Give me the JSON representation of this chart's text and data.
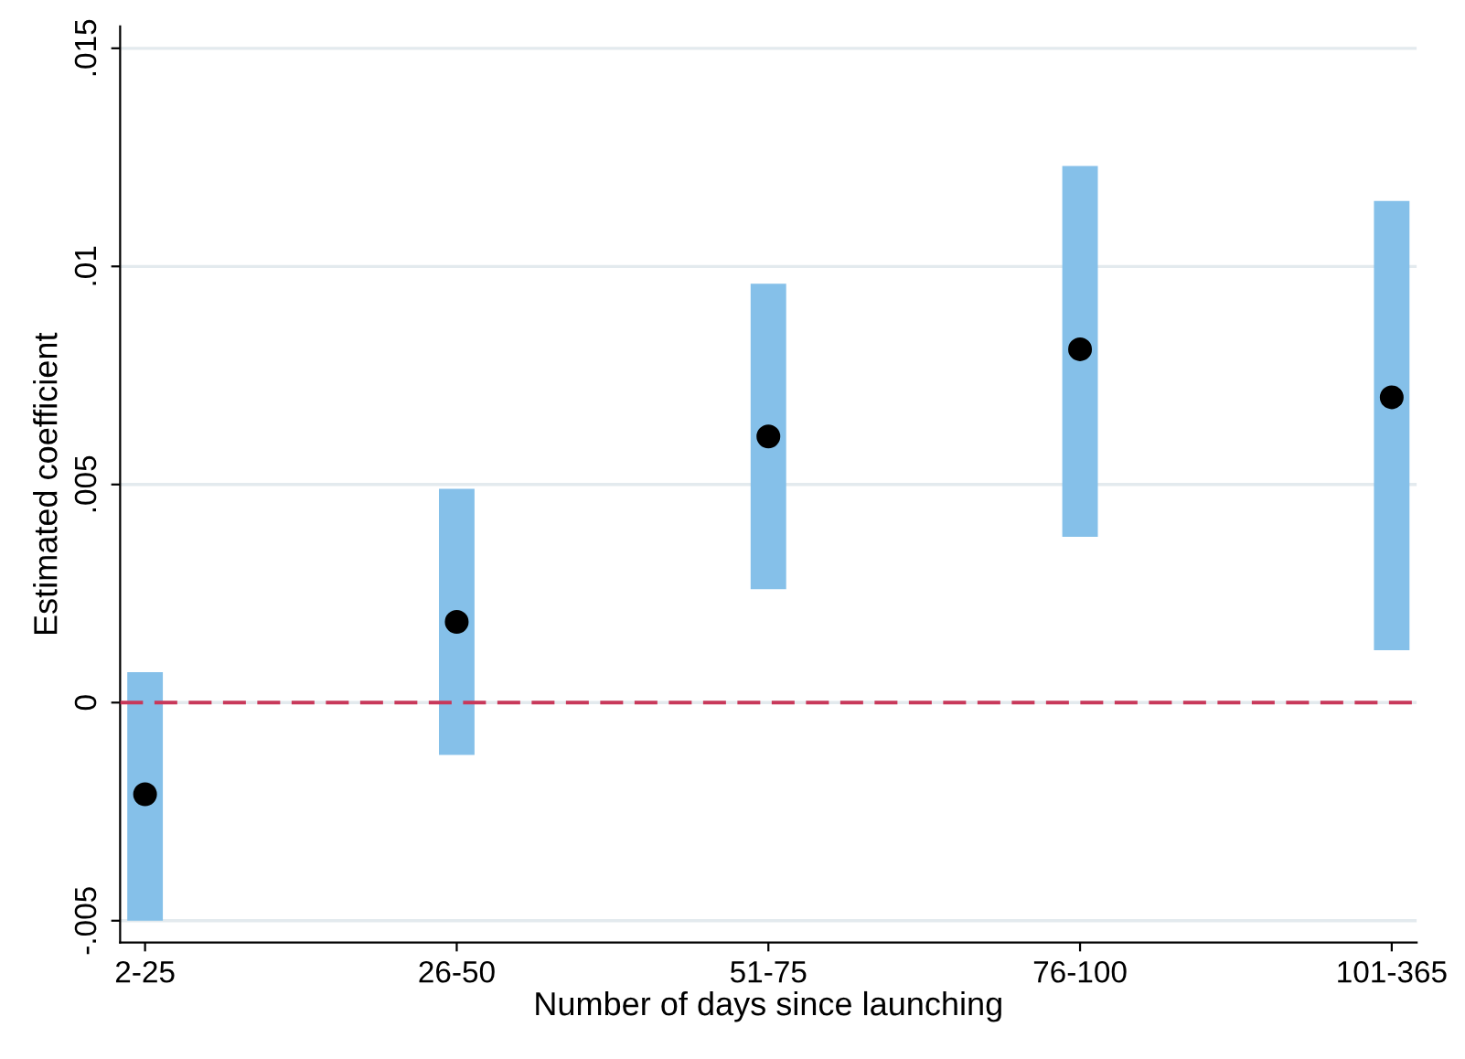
{
  "chart_data": {
    "type": "scatter",
    "xlabel": "Number of days since launching",
    "ylabel": "Estimated coefficient",
    "categories": [
      "2-25",
      "26-50",
      "51-75",
      "76-100",
      "101-365"
    ],
    "series": [
      {
        "color": "#000000",
        "values": [
          -0.0021,
          0.00185,
          0.0061,
          0.0081,
          0.007
        ],
        "errors": [
          [
            -0.005,
            0.0007
          ],
          [
            -0.0012,
            0.0049
          ],
          [
            0.0026,
            0.0096
          ],
          [
            0.0038,
            0.0123
          ],
          [
            0.0012,
            0.0115
          ]
        ]
      }
    ],
    "ylim": [
      -0.0055,
      0.0155
    ],
    "yticks": [
      {
        "value": -0.005,
        "label": "-.005"
      },
      0,
      {
        "value": 0.005,
        "label": ".005"
      },
      {
        "value": 0.01,
        "label": ".01"
      },
      {
        "value": 0.015,
        "label": ".015"
      }
    ],
    "ref_lines": [
      {
        "axis": "y",
        "value": 0,
        "color": "#c8385a",
        "line_style": "dashed"
      }
    ],
    "grid": "y",
    "marker": "circle",
    "legend": false
  }
}
